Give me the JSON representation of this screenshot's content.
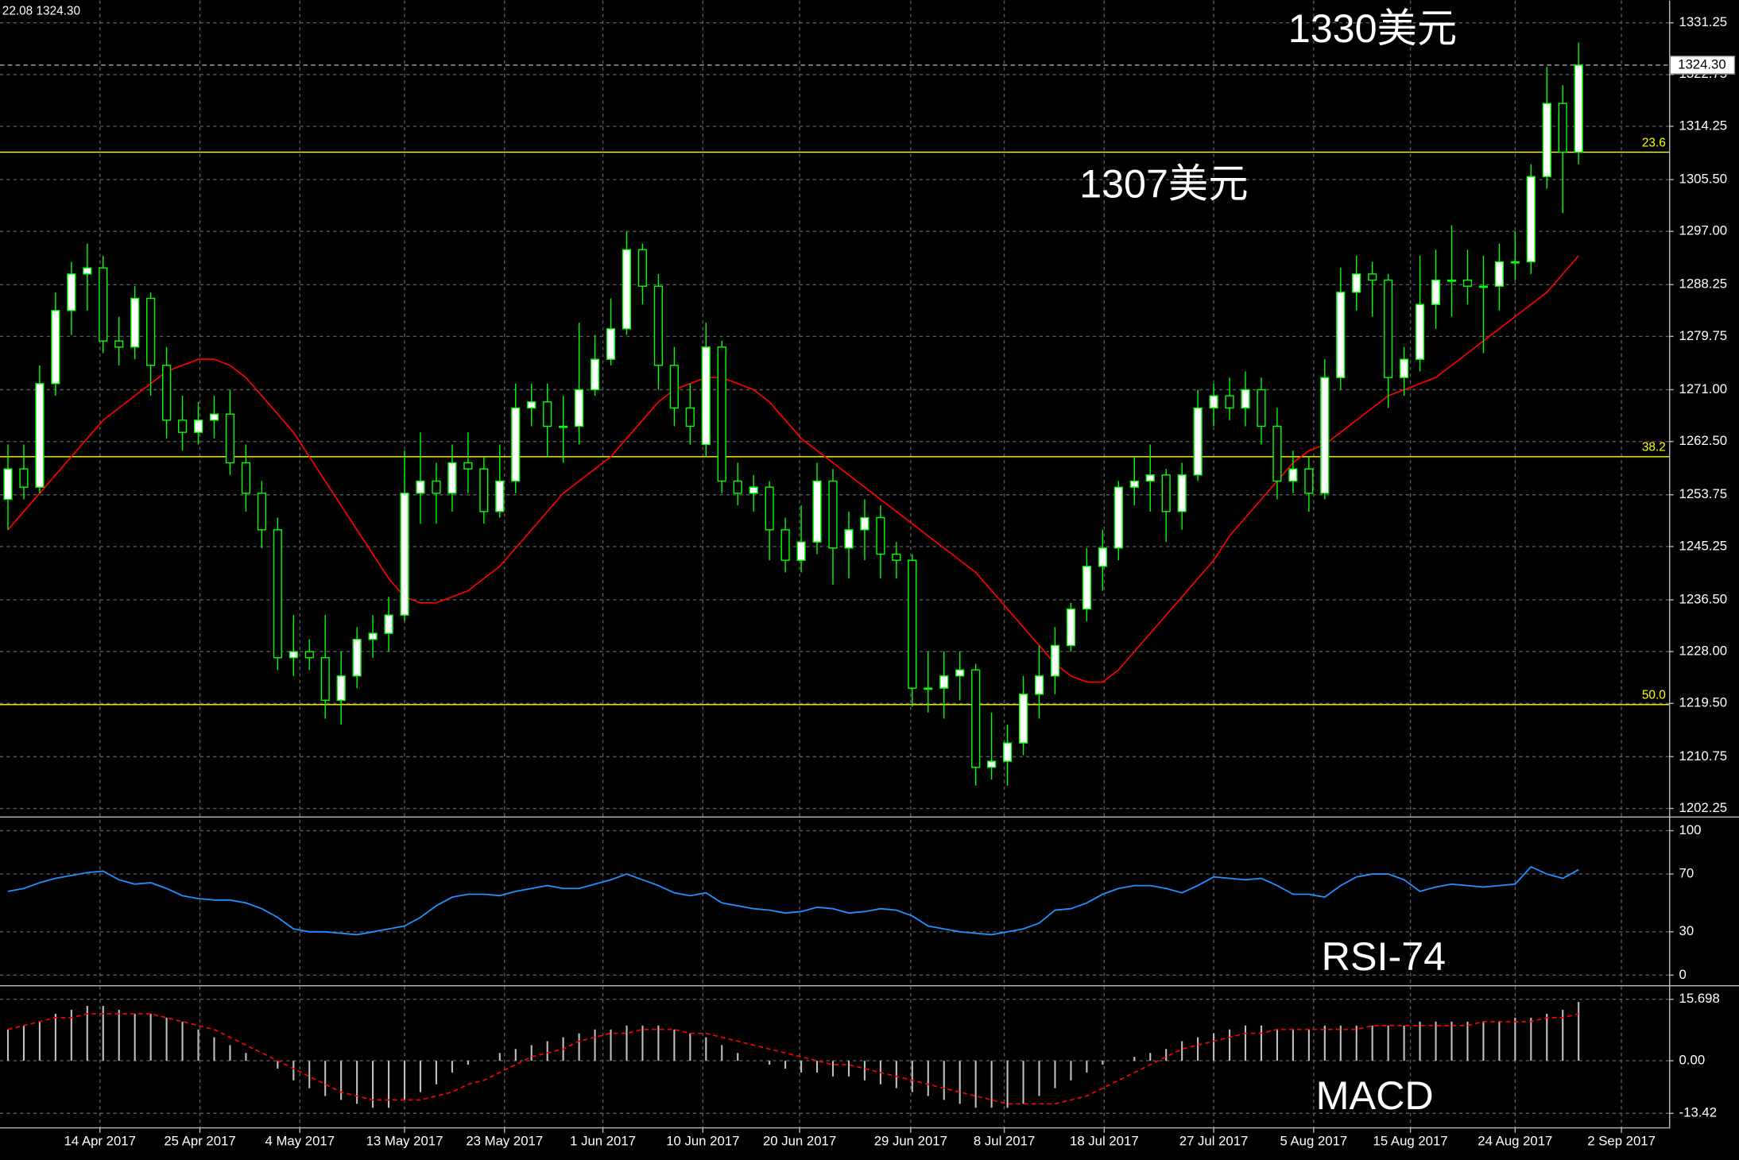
{
  "chart_data": [
    {
      "type": "candlestick",
      "info": "22.08 1324.30",
      "annotations": [
        "1330美元",
        "1307美元"
      ],
      "bull_color": "#ffffff",
      "bear_color": "#000000",
      "outline_color": "#00ff00",
      "candles": [
        [
          1253,
          1262,
          1248,
          1258
        ],
        [
          1258,
          1262,
          1253,
          1255
        ],
        [
          1255,
          1275,
          1254,
          1272
        ],
        [
          1272,
          1287,
          1270,
          1284
        ],
        [
          1284,
          1292,
          1280,
          1290
        ],
        [
          1290,
          1295,
          1284,
          1291
        ],
        [
          1291,
          1293,
          1277,
          1279
        ],
        [
          1279,
          1283,
          1275,
          1278
        ],
        [
          1278,
          1288,
          1276,
          1286
        ],
        [
          1286,
          1287,
          1270,
          1275
        ],
        [
          1275,
          1278,
          1263,
          1266
        ],
        [
          1266,
          1270,
          1261,
          1264
        ],
        [
          1264,
          1269,
          1262,
          1266
        ],
        [
          1266,
          1270,
          1263,
          1267
        ],
        [
          1267,
          1271,
          1257,
          1259
        ],
        [
          1259,
          1262,
          1251,
          1254
        ],
        [
          1254,
          1256,
          1245,
          1248
        ],
        [
          1248,
          1250,
          1225,
          1227
        ],
        [
          1227,
          1234,
          1224,
          1228
        ],
        [
          1228,
          1230,
          1225,
          1227
        ],
        [
          1227,
          1234,
          1217,
          1220
        ],
        [
          1220,
          1228,
          1216,
          1224
        ],
        [
          1224,
          1232,
          1222,
          1230
        ],
        [
          1230,
          1234,
          1227,
          1231
        ],
        [
          1231,
          1237,
          1228,
          1234
        ],
        [
          1234,
          1261,
          1233,
          1254
        ],
        [
          1254,
          1264,
          1249,
          1256
        ],
        [
          1256,
          1259,
          1249,
          1254
        ],
        [
          1254,
          1262,
          1251,
          1259
        ],
        [
          1259,
          1264,
          1254,
          1258
        ],
        [
          1258,
          1260,
          1249,
          1251
        ],
        [
          1251,
          1262,
          1250,
          1256
        ],
        [
          1256,
          1272,
          1254,
          1268
        ],
        [
          1268,
          1272,
          1265,
          1269
        ],
        [
          1269,
          1272,
          1260,
          1265
        ],
        [
          1265,
          1270,
          1259,
          1265
        ],
        [
          1265,
          1282,
          1262,
          1271
        ],
        [
          1271,
          1280,
          1270,
          1276
        ],
        [
          1276,
          1286,
          1275,
          1281
        ],
        [
          1281,
          1297,
          1280,
          1294
        ],
        [
          1294,
          1295,
          1285,
          1288
        ],
        [
          1288,
          1290,
          1271,
          1275
        ],
        [
          1275,
          1278,
          1265,
          1268
        ],
        [
          1268,
          1272,
          1262,
          1265
        ],
        [
          1262,
          1282,
          1260,
          1278
        ],
        [
          1278,
          1279,
          1254,
          1256
        ],
        [
          1256,
          1259,
          1252,
          1254
        ],
        [
          1254,
          1257,
          1251,
          1255
        ],
        [
          1255,
          1256,
          1243,
          1248
        ],
        [
          1248,
          1250,
          1241,
          1243
        ],
        [
          1243,
          1252,
          1241,
          1246
        ],
        [
          1246,
          1259,
          1244,
          1256
        ],
        [
          1256,
          1258,
          1239,
          1245
        ],
        [
          1245,
          1251,
          1240,
          1248
        ],
        [
          1248,
          1253,
          1243,
          1250
        ],
        [
          1250,
          1252,
          1240,
          1244
        ],
        [
          1244,
          1246,
          1240,
          1243
        ],
        [
          1243,
          1244,
          1219,
          1222
        ],
        [
          1222,
          1228,
          1218,
          1222
        ],
        [
          1222,
          1228,
          1217,
          1224
        ],
        [
          1224,
          1228,
          1220,
          1225
        ],
        [
          1225,
          1226,
          1206,
          1209
        ],
        [
          1209,
          1218,
          1207,
          1210
        ],
        [
          1210,
          1216,
          1206,
          1213
        ],
        [
          1213,
          1224,
          1211,
          1221
        ],
        [
          1221,
          1229,
          1217,
          1224
        ],
        [
          1224,
          1232,
          1221,
          1229
        ],
        [
          1229,
          1236,
          1228,
          1235
        ],
        [
          1235,
          1245,
          1233,
          1242
        ],
        [
          1242,
          1248,
          1238,
          1245
        ],
        [
          1245,
          1256,
          1243,
          1255
        ],
        [
          1255,
          1260,
          1252,
          1256
        ],
        [
          1256,
          1262,
          1251,
          1257
        ],
        [
          1257,
          1258,
          1246,
          1251
        ],
        [
          1251,
          1259,
          1248,
          1257
        ],
        [
          1257,
          1271,
          1256,
          1268
        ],
        [
          1268,
          1272,
          1265,
          1270
        ],
        [
          1270,
          1273,
          1266,
          1268
        ],
        [
          1268,
          1274,
          1265,
          1271
        ],
        [
          1271,
          1273,
          1262,
          1265
        ],
        [
          1265,
          1268,
          1253,
          1256
        ],
        [
          1256,
          1261,
          1254,
          1258
        ],
        [
          1258,
          1260,
          1251,
          1254
        ],
        [
          1254,
          1276,
          1253,
          1273
        ],
        [
          1273,
          1291,
          1271,
          1287
        ],
        [
          1287,
          1293,
          1284,
          1290
        ],
        [
          1290,
          1292,
          1283,
          1289
        ],
        [
          1289,
          1290,
          1268,
          1273
        ],
        [
          1273,
          1278,
          1270,
          1276
        ],
        [
          1276,
          1293,
          1274,
          1285
        ],
        [
          1285,
          1294,
          1281,
          1289
        ],
        [
          1289,
          1298,
          1283,
          1289
        ],
        [
          1289,
          1294,
          1285,
          1288
        ],
        [
          1288,
          1293,
          1277,
          1288
        ],
        [
          1288,
          1295,
          1284,
          1292
        ],
        [
          1292,
          1297,
          1289,
          1292
        ],
        [
          1292,
          1308,
          1290,
          1306
        ],
        [
          1306,
          1324,
          1304,
          1318
        ],
        [
          1318,
          1321,
          1300,
          1310
        ],
        [
          1310,
          1328,
          1308,
          1324.3
        ]
      ],
      "ma": {
        "color": "#ff0000",
        "values": [
          1248,
          1251,
          1254,
          1257,
          1260,
          1263,
          1266,
          1268,
          1270,
          1272,
          1274,
          1275,
          1276,
          1276,
          1275,
          1273,
          1270,
          1267,
          1264,
          1260,
          1256,
          1252,
          1248,
          1244,
          1240,
          1237,
          1236,
          1236,
          1237,
          1238,
          1240,
          1242,
          1245,
          1248,
          1251,
          1254,
          1256,
          1258,
          1260,
          1263,
          1266,
          1269,
          1271,
          1272,
          1273,
          1273,
          1272,
          1271,
          1269,
          1266,
          1263,
          1261,
          1259,
          1257,
          1255,
          1253,
          1251,
          1249,
          1247,
          1245,
          1243,
          1241,
          1238,
          1235,
          1232,
          1229,
          1226,
          1224,
          1223,
          1223,
          1225,
          1228,
          1231,
          1234,
          1237,
          1240,
          1243,
          1247,
          1250,
          1253,
          1256,
          1259,
          1261,
          1262,
          1264,
          1266,
          1268,
          1270,
          1271,
          1272,
          1273,
          1275,
          1277,
          1279,
          1281,
          1283,
          1285,
          1287,
          1290,
          1293
        ]
      },
      "levels": [
        {
          "label": "23.6",
          "value": 1310,
          "color": "#ffff00"
        },
        {
          "label": "38.2",
          "value": 1260,
          "color": "#ffff00"
        },
        {
          "label": "50.0",
          "value": 1219.3,
          "color": "#ffff00"
        }
      ],
      "last_price": {
        "value": 1324.3,
        "label": "1324.30"
      },
      "ylim": [
        1201.3,
        1334.9
      ],
      "yticks": [
        1331.25,
        1322.75,
        1314.25,
        {
          "value": 1305.5,
          "label": "1305.50"
        },
        {
          "value": 1297,
          "label": "1297.00"
        },
        1288.25,
        1279.75,
        {
          "value": 1271,
          "label": "1271.00"
        },
        {
          "value": 1262.5,
          "label": "1262.50"
        },
        1253.75,
        1245.25,
        {
          "value": 1236.5,
          "label": "1236.50"
        },
        {
          "value": 1228,
          "label": "1228.00"
        },
        {
          "value": 1219.5,
          "label": "1219.50"
        },
        1210.75,
        1202.25
      ],
      "grid": true
    },
    {
      "type": "line",
      "label": "RSI-74",
      "color": "#1e90ff",
      "values": [
        58,
        60,
        64,
        67,
        69,
        71,
        72,
        66,
        63,
        64,
        60,
        55,
        53,
        52,
        52,
        50,
        46,
        40,
        32,
        30,
        30,
        29,
        28,
        30,
        32,
        34,
        40,
        48,
        54,
        56,
        56,
        55,
        58,
        60,
        62,
        60,
        60,
        63,
        66,
        70,
        66,
        62,
        57,
        55,
        57,
        50,
        48,
        46,
        45,
        43,
        44,
        47,
        46,
        43,
        44,
        46,
        45,
        41,
        34,
        32,
        30,
        29,
        28,
        30,
        32,
        36,
        45,
        46,
        50,
        56,
        60,
        62,
        62,
        60,
        57,
        62,
        68,
        67,
        66,
        67,
        62,
        56,
        56,
        54,
        62,
        68,
        70,
        70,
        66,
        58,
        61,
        63,
        62,
        61,
        62,
        63,
        75,
        70,
        67,
        73
      ],
      "ylim": [
        -5.4,
        106
      ],
      "yticks": [
        100,
        70,
        30,
        0
      ],
      "grid": true
    },
    {
      "type": "bar",
      "label": "MACD",
      "color": "#c0c0c0",
      "values": [
        8,
        9,
        10,
        12,
        13,
        14,
        14,
        13,
        12,
        12,
        11,
        10,
        8,
        6,
        4,
        2,
        0,
        -2,
        -5,
        -7,
        -9,
        -10,
        -11,
        -12,
        -12,
        -10,
        -8,
        -6,
        -3,
        -1,
        0,
        2,
        3,
        4,
        5,
        6,
        7,
        8,
        8,
        9,
        9,
        9,
        8,
        7,
        6,
        4,
        2,
        0,
        -1,
        -2,
        -3,
        -3,
        -4,
        -4,
        -5,
        -6,
        -7,
        -8,
        -9,
        -10,
        -11,
        -12,
        -12,
        -12,
        -11,
        -9,
        -7,
        -5,
        -3,
        -1,
        0,
        1,
        2,
        3,
        5,
        6,
        7,
        8,
        9,
        9,
        8,
        8,
        8,
        9,
        9,
        9,
        9,
        9,
        9,
        10,
        10,
        10,
        10,
        10,
        10,
        11,
        11,
        12,
        13,
        15
      ],
      "signal": {
        "color": "#ff0000",
        "values": [
          8,
          9,
          10,
          11,
          11,
          12,
          12,
          12,
          12,
          12,
          11,
          10,
          9,
          8,
          6,
          4,
          2,
          0,
          -2,
          -4,
          -6,
          -8,
          -9,
          -10,
          -10,
          -10,
          -10,
          -9,
          -8,
          -6,
          -5,
          -3,
          -1,
          1,
          2,
          3,
          5,
          6,
          7,
          7,
          8,
          8,
          8,
          7,
          7,
          6,
          5,
          4,
          3,
          2,
          1,
          0,
          -1,
          -1,
          -2,
          -3,
          -4,
          -5,
          -6,
          -7,
          -8,
          -9,
          -10,
          -11,
          -11,
          -11,
          -11,
          -10,
          -9,
          -7,
          -5,
          -3,
          -1,
          1,
          3,
          4,
          5,
          6,
          7,
          7,
          8,
          8,
          8,
          8,
          8,
          8,
          9,
          9,
          9,
          9,
          9,
          9,
          9,
          10,
          10,
          10,
          10,
          11,
          11,
          12
        ]
      },
      "ylim": [
        -16.7,
        18.45
      ],
      "yticks": [
        15.698,
        {
          "value": 0,
          "label": "0.00"
        },
        -13.42
      ],
      "xlim": [
        -0.5,
        104.7
      ],
      "xticks": [
        {
          "value": 5.8,
          "label": "14 Apr 2017"
        },
        {
          "value": 12.1,
          "label": "25 Apr 2017"
        },
        {
          "value": 18.4,
          "label": "4 May 2017"
        },
        {
          "value": 25.0,
          "label": "13 May 2017"
        },
        {
          "value": 31.3,
          "label": "23 May 2017"
        },
        {
          "value": 37.5,
          "label": "1 Jun 2017"
        },
        {
          "value": 43.8,
          "label": "10 Jun 2017"
        },
        {
          "value": 49.9,
          "label": "20 Jun 2017"
        },
        {
          "value": 56.9,
          "label": "29 Jun 2017"
        },
        {
          "value": 62.8,
          "label": "8 Jul 2017"
        },
        {
          "value": 69.1,
          "label": "18 Jul 2017"
        },
        {
          "value": 76.0,
          "label": "27 Jul 2017"
        },
        {
          "value": 82.3,
          "label": "5 Aug 2017"
        },
        {
          "value": 88.4,
          "label": "15 Aug 2017"
        },
        {
          "value": 95.0,
          "label": "24 Aug 2017"
        },
        {
          "value": 101.7,
          "label": "2 Sep 2017"
        }
      ],
      "grid": true
    }
  ]
}
